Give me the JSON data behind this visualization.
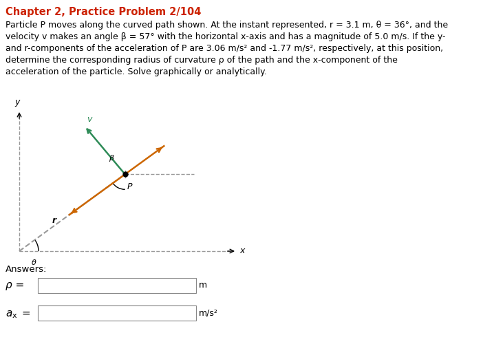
{
  "title": "Chapter 2, Practice Problem 2/104",
  "title_color": "#cc2200",
  "body_lines": [
    "Particle P moves along the curved path shown. At the instant represented, r = 3.1 m, θ = 36°, and the",
    "velocity v makes an angle β = 57° with the horizontal x-axis and has a magnitude of 5.0 m/s. If the y-",
    "and r-components of the acceleration of P are 3.06 m/s² and -1.77 m/s², respectively, at this position,",
    "determine the corresponding radius of curvature ρ of the path and the x-component of the",
    "acceleration of the particle. Solve graphically or analytically."
  ],
  "answers_label": "Answers:",
  "rho_label": "ρ =",
  "rho_unit": "m",
  "ax_unit": "m/s²",
  "diagram": {
    "theta_deg": 36,
    "beta_deg": 57,
    "dashed_color": "#999999",
    "v_arrow_color": "#2e8b57",
    "accel_arrow_color": "#cc6600",
    "point_color": "#000000"
  },
  "background_color": "#ffffff",
  "font_color": "#000000",
  "font_size_body": 9.0,
  "font_size_title": 10.5
}
